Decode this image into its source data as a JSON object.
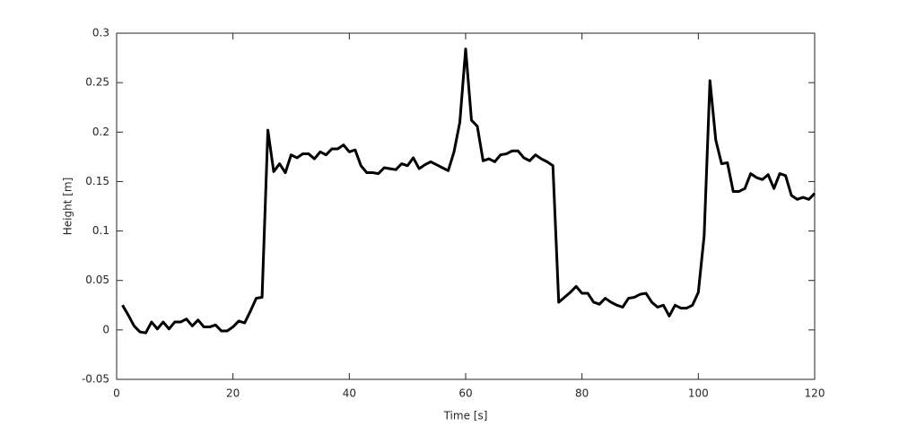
{
  "chart_data": {
    "type": "line",
    "xlabel": "Time [s]",
    "ylabel": "Height [m]",
    "x": [
      1,
      2,
      3,
      4,
      5,
      6,
      7,
      8,
      9,
      10,
      11,
      12,
      13,
      14,
      15,
      16,
      17,
      18,
      19,
      20,
      21,
      22,
      23,
      24,
      25,
      26,
      27,
      28,
      29,
      30,
      31,
      32,
      33,
      34,
      35,
      36,
      37,
      38,
      39,
      40,
      41,
      42,
      43,
      44,
      45,
      46,
      47,
      48,
      49,
      50,
      51,
      52,
      53,
      54,
      55,
      56,
      57,
      58,
      59,
      60,
      61,
      62,
      63,
      64,
      65,
      66,
      67,
      68,
      69,
      70,
      71,
      72,
      73,
      74,
      75,
      76,
      77,
      78,
      79,
      80,
      81,
      82,
      83,
      84,
      85,
      86,
      87,
      88,
      89,
      90,
      91,
      92,
      93,
      94,
      95,
      96,
      97,
      98,
      99,
      100,
      101,
      102,
      103,
      104,
      105,
      106,
      107,
      108,
      109,
      110,
      111,
      112,
      113,
      114,
      115,
      116,
      117,
      118,
      119,
      120
    ],
    "series": [
      {
        "color": "#000000",
        "values": [
          0.025,
          0.015,
          0.004,
          -0.002,
          -0.003,
          0.008,
          0.001,
          0.008,
          0.001,
          0.008,
          0.008,
          0.011,
          0.004,
          0.01,
          0.003,
          0.003,
          0.005,
          -0.001,
          -0.001,
          0.003,
          0.009,
          0.007,
          0.019,
          0.032,
          0.033,
          0.202,
          0.16,
          0.168,
          0.159,
          0.177,
          0.174,
          0.178,
          0.178,
          0.173,
          0.18,
          0.177,
          0.183,
          0.183,
          0.187,
          0.18,
          0.182,
          0.166,
          0.159,
          0.159,
          0.158,
          0.164,
          0.163,
          0.162,
          0.168,
          0.166,
          0.174,
          0.163,
          0.167,
          0.17,
          0.167,
          0.164,
          0.161,
          0.18,
          0.21,
          0.284,
          0.212,
          0.206,
          0.171,
          0.173,
          0.17,
          0.177,
          0.178,
          0.181,
          0.181,
          0.174,
          0.171,
          0.177,
          0.173,
          0.17,
          0.166,
          0.028,
          0.033,
          0.038,
          0.044,
          0.037,
          0.037,
          0.028,
          0.026,
          0.032,
          0.028,
          0.025,
          0.023,
          0.032,
          0.033,
          0.036,
          0.037,
          0.028,
          0.023,
          0.025,
          0.014,
          0.025,
          0.022,
          0.022,
          0.025,
          0.038,
          0.095,
          0.252,
          0.192,
          0.168,
          0.169,
          0.14,
          0.14,
          0.143,
          0.158,
          0.154,
          0.152,
          0.157,
          0.143,
          0.158,
          0.156,
          0.136,
          0.132,
          0.134,
          0.132,
          0.138
        ]
      }
    ],
    "xlim": [
      0,
      120
    ],
    "xticks": [
      0,
      20,
      40,
      60,
      80,
      100,
      120
    ],
    "ylim": [
      -0.05,
      0.3
    ],
    "yticks": [
      -0.05,
      0,
      0.05,
      0.1,
      0.15,
      0.2,
      0.25,
      0.3
    ],
    "grid": false
  }
}
